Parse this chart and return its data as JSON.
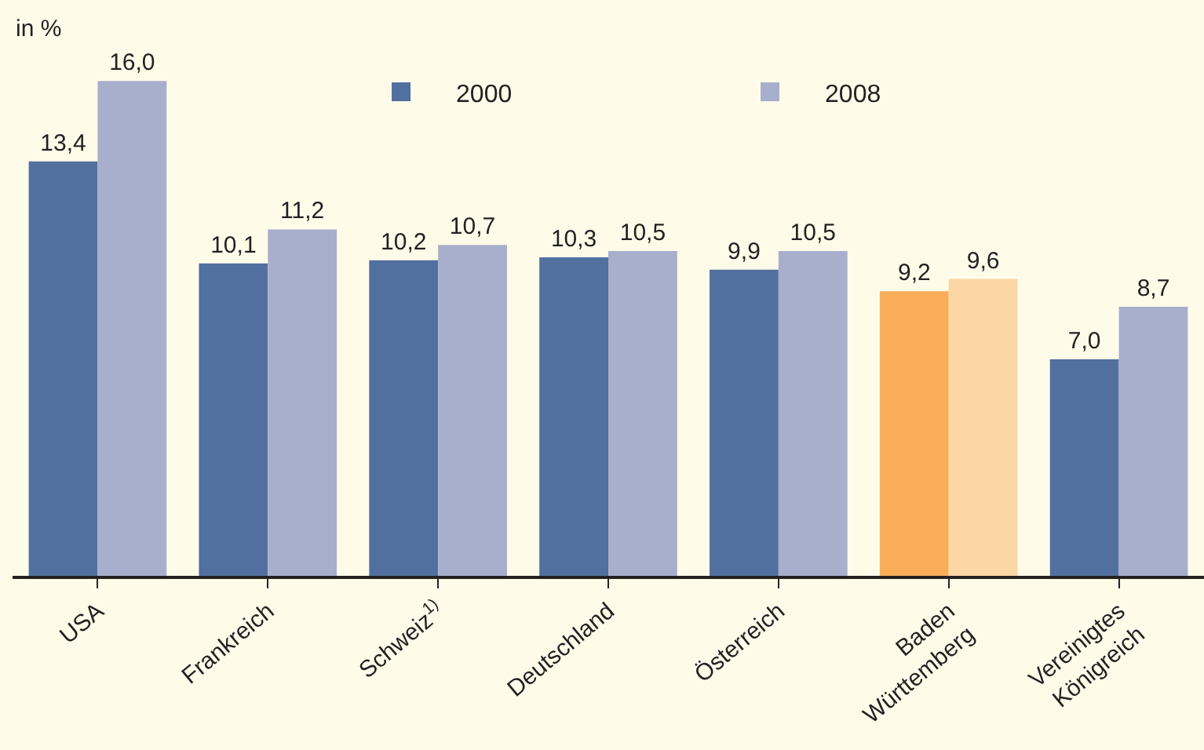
{
  "chart_data": {
    "type": "bar",
    "ylabel": "in %",
    "categories": [
      "USA",
      "Frankreich",
      "Schweiz$^{1)}$",
      "Deutschland",
      "Österreich",
      "Baden\nWürttemberg",
      "Vereinigtes\nKönigreich"
    ],
    "series": [
      {
        "name": "2000",
        "colors": [
          "#52709f",
          "#52709f",
          "#52709f",
          "#52709f",
          "#52709f",
          "#f9ad58",
          "#52709f"
        ],
        "values": [
          13.4,
          10.1,
          10.2,
          10.3,
          9.9,
          9.2,
          7.0
        ],
        "value_labels": [
          "13,4",
          "10,1",
          "10,2",
          "10,3",
          "9,9",
          "9,2",
          "7,0"
        ]
      },
      {
        "name": "2008",
        "colors": [
          "#a7afcc",
          "#a7afcc",
          "#a7afcc",
          "#a7afcc",
          "#a7afcc",
          "#fdd6a5",
          "#a7afcc"
        ],
        "values": [
          16.0,
          11.2,
          10.7,
          10.5,
          10.5,
          9.6,
          8.7
        ],
        "value_labels": [
          "16,0",
          "11,2",
          "10,7",
          "10,5",
          "10,5",
          "9,6",
          "8,7"
        ]
      }
    ],
    "legend": "top"
  }
}
